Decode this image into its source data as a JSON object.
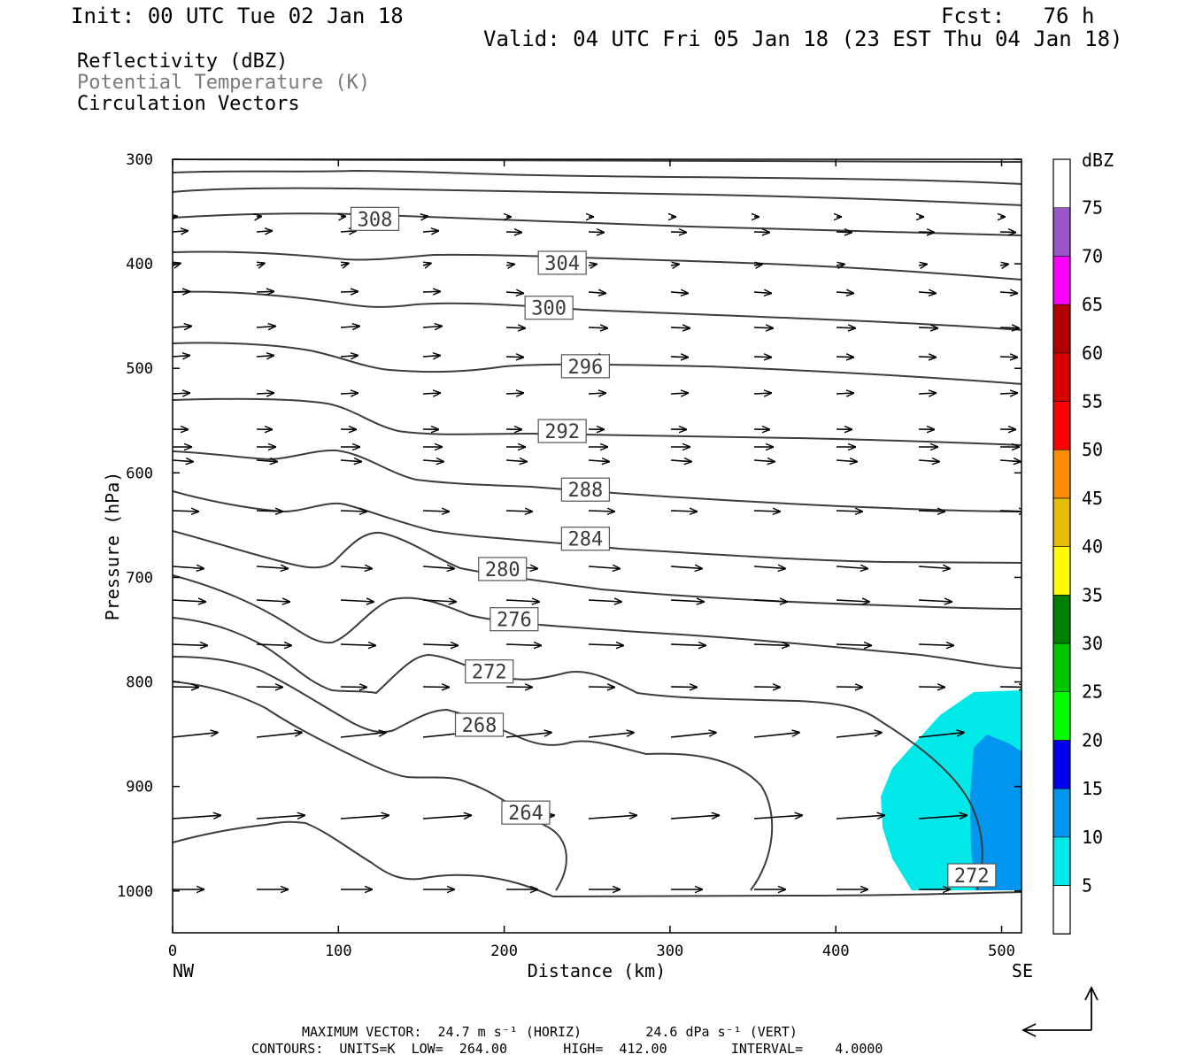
{
  "header": {
    "init": "Init: 00 UTC Tue 02 Jan 18",
    "fcst": "Fcst:   76 h",
    "valid": "Valid: 04 UTC Fri 05 Jan 18 (23 EST Thu 04 Jan 18)"
  },
  "fields": {
    "reflectivity": "Reflectivity (dBZ)",
    "theta": "Potential Temperature (K)",
    "vectors": "Circulation Vectors"
  },
  "chart_data": {
    "type": "cross-section",
    "ylabel": "Pressure (hPa)",
    "xlabel": "Distance (km)",
    "x_ticks": [
      0,
      100,
      200,
      300,
      400,
      500
    ],
    "y_ticks": [
      300,
      400,
      500,
      600,
      700,
      800,
      900,
      1000
    ],
    "xlim": [
      0,
      512
    ],
    "ylim": [
      1040,
      300
    ],
    "x_end_labels": {
      "left": "NW",
      "right": "SE"
    },
    "contour_labels": [
      {
        "value": "308",
        "x": 122,
        "p": 357
      },
      {
        "value": "304",
        "x": 235,
        "p": 399
      },
      {
        "value": "300",
        "x": 227,
        "p": 442
      },
      {
        "value": "296",
        "x": 249,
        "p": 498
      },
      {
        "value": "292",
        "x": 235,
        "p": 560
      },
      {
        "value": "288",
        "x": 249,
        "p": 616
      },
      {
        "value": "284",
        "x": 249,
        "p": 663
      },
      {
        "value": "280",
        "x": 199,
        "p": 692
      },
      {
        "value": "276",
        "x": 206,
        "p": 740
      },
      {
        "value": "272",
        "x": 191,
        "p": 790
      },
      {
        "value": "268",
        "x": 185,
        "p": 841
      },
      {
        "value": "264",
        "x": 213,
        "p": 925
      },
      {
        "value": "272",
        "x": 482,
        "p": 985
      }
    ],
    "colorbar": {
      "title": "dBZ",
      "labels": [
        "5",
        "10",
        "15",
        "20",
        "25",
        "30",
        "35",
        "40",
        "45",
        "50",
        "55",
        "60",
        "65",
        "70",
        "75"
      ],
      "colors": [
        "#00e8e8",
        "#0096f0",
        "#0000f0",
        "#00ff00",
        "#00c800",
        "#008000",
        "#ffff00",
        "#e6be00",
        "#ff8c00",
        "#ff0000",
        "#d60000",
        "#b40000",
        "#ff00ff",
        "#9955c9",
        "#ffffff"
      ]
    },
    "footer_vector": "MAXIMUM VECTOR:  24.7 m s⁻¹ (HORIZ)        24.6 dPa s⁻¹ (VERT)",
    "footer_contours": "CONTOURS:  UNITS=K  LOW=  264.00       HIGH=  412.00        INTERVAL=    4.0000"
  }
}
